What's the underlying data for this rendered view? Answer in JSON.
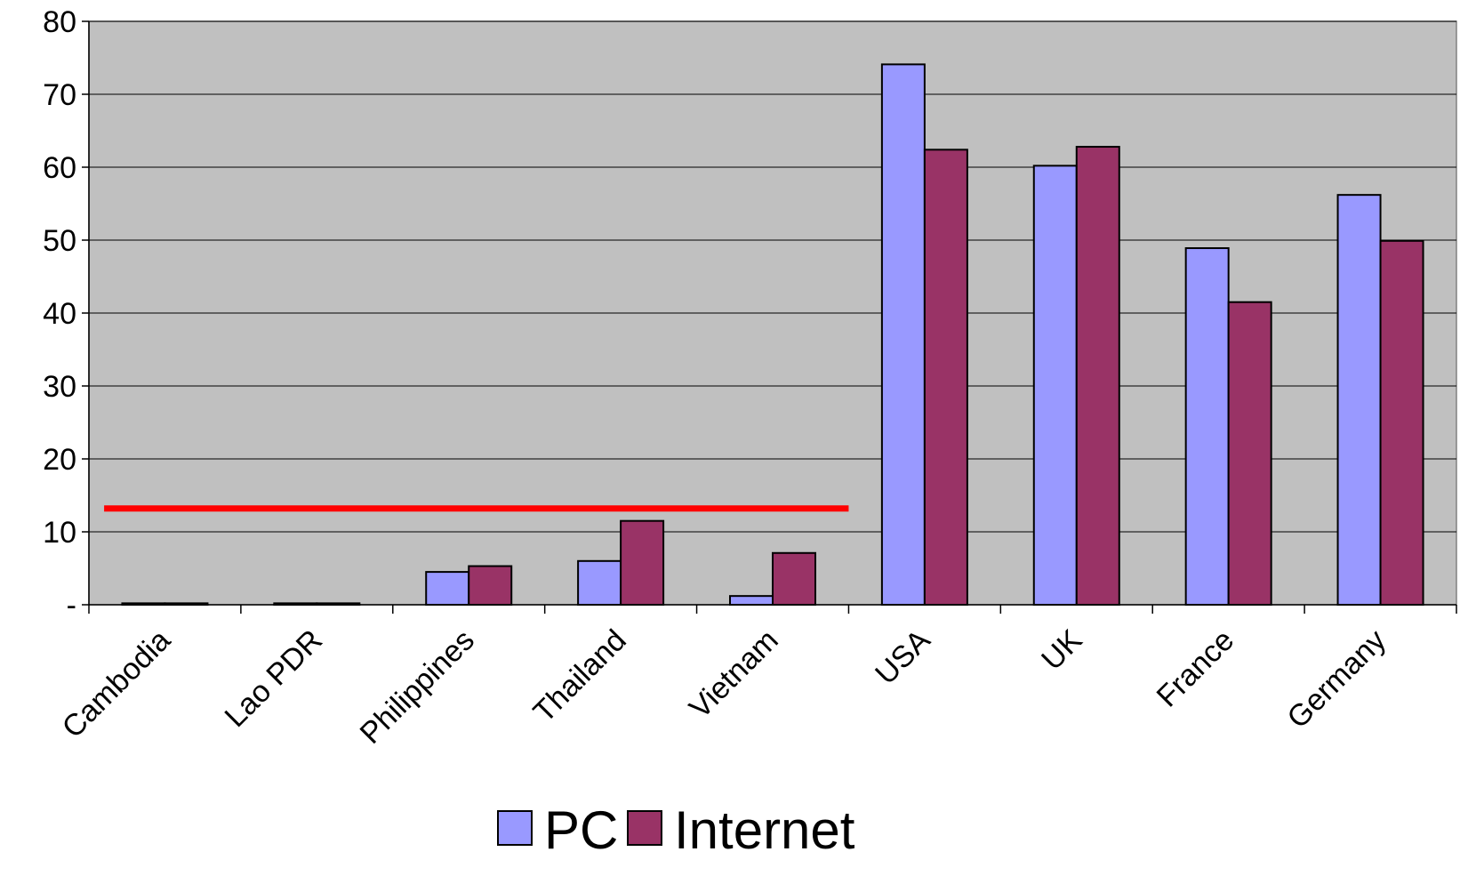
{
  "chart_data": {
    "type": "bar",
    "categories": [
      "Cambodia",
      "Lao PDR",
      "Philippines",
      "Thailand",
      "Vietnam",
      "USA",
      "UK",
      "France",
      "Germany"
    ],
    "series": [
      {
        "name": "PC",
        "color": "#9999FF",
        "values": [
          0.2,
          0.2,
          4.5,
          6.0,
          1.2,
          74.1,
          60.2,
          48.9,
          56.2
        ]
      },
      {
        "name": "Internet",
        "color": "#993366",
        "values": [
          0.2,
          0.2,
          5.3,
          11.5,
          7.1,
          62.4,
          62.8,
          41.5,
          49.9
        ]
      }
    ],
    "ylim": [
      0,
      80
    ],
    "yticks": [
      {
        "value": 0,
        "label": "-"
      },
      {
        "value": 10,
        "label": "10"
      },
      {
        "value": 20,
        "label": "20"
      },
      {
        "value": 30,
        "label": "30"
      },
      {
        "value": 40,
        "label": "40"
      },
      {
        "value": 50,
        "label": "50"
      },
      {
        "value": 60,
        "label": "60"
      },
      {
        "value": 70,
        "label": "70"
      },
      {
        "value": 80,
        "label": "80"
      }
    ],
    "reference_line": {
      "value": 13.2,
      "from_category": 0,
      "to_category": 4,
      "color": "#FF0000"
    },
    "plot_background": "#C0C0C0",
    "grid": true,
    "legend_position": "bottom-center",
    "title": "",
    "xlabel": "",
    "ylabel": ""
  }
}
